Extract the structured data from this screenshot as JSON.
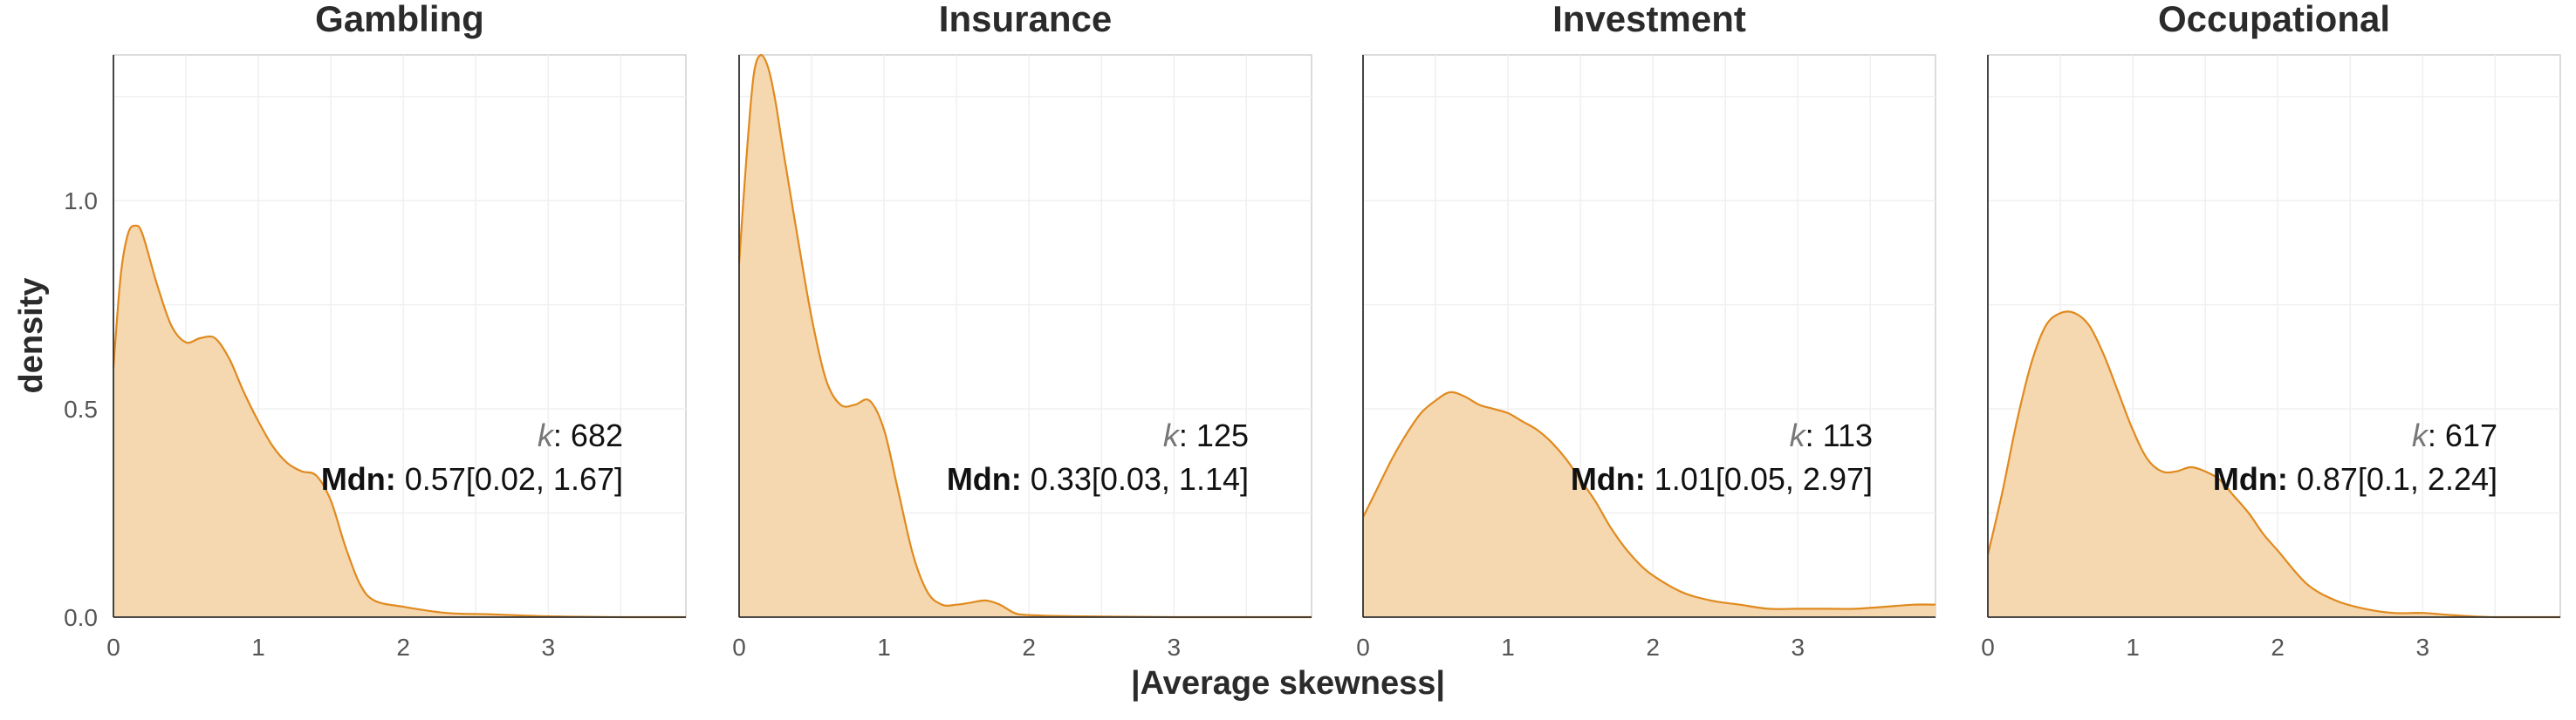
{
  "chart_data": {
    "type": "area",
    "fill_color": "#f5d7b0",
    "line_color": "#e08a1e",
    "xlabel": "|Average skewness|",
    "ylabel": "density",
    "xlim": [
      0,
      3.95
    ],
    "ylim": [
      0,
      1.35
    ],
    "xticks": [
      "0",
      "1",
      "2",
      "3"
    ],
    "yticks": [
      "0.0",
      "0.5",
      "1.0"
    ],
    "panels": [
      {
        "title": "Gambling",
        "k_label": "k",
        "k_value": ": 682",
        "mdn_label": "Mdn:",
        "mdn_value": " 0.57[0.02, 1.67]",
        "x": [
          0,
          0.05,
          0.1,
          0.15,
          0.2,
          0.3,
          0.4,
          0.5,
          0.6,
          0.7,
          0.8,
          0.9,
          1.0,
          1.1,
          1.2,
          1.3,
          1.4,
          1.5,
          1.6,
          1.7,
          1.8,
          2.0,
          2.3,
          2.6,
          3.0,
          3.5,
          3.95
        ],
        "y": [
          0.6,
          0.82,
          0.92,
          0.94,
          0.92,
          0.8,
          0.7,
          0.66,
          0.67,
          0.67,
          0.62,
          0.54,
          0.47,
          0.41,
          0.37,
          0.35,
          0.34,
          0.28,
          0.17,
          0.08,
          0.04,
          0.025,
          0.01,
          0.007,
          0.002,
          0,
          0
        ]
      },
      {
        "title": "Insurance",
        "k_label": "k",
        "k_value": ": 125",
        "mdn_label": "Mdn:",
        "mdn_value": " 0.33[0.03, 1.14]",
        "x": [
          0,
          0.05,
          0.1,
          0.15,
          0.2,
          0.25,
          0.3,
          0.4,
          0.5,
          0.6,
          0.7,
          0.8,
          0.9,
          1.0,
          1.1,
          1.2,
          1.3,
          1.4,
          1.5,
          1.6,
          1.7,
          1.8,
          1.9,
          2.0,
          2.3,
          3.0,
          3.95
        ],
        "y": [
          0.85,
          1.1,
          1.3,
          1.35,
          1.32,
          1.24,
          1.13,
          0.92,
          0.72,
          0.57,
          0.51,
          0.51,
          0.52,
          0.45,
          0.3,
          0.15,
          0.06,
          0.03,
          0.03,
          0.035,
          0.04,
          0.03,
          0.01,
          0.005,
          0.002,
          0,
          0
        ]
      },
      {
        "title": "Investment",
        "k_label": "k",
        "k_value": ": 113",
        "mdn_label": "Mdn:",
        "mdn_value": " 1.01[0.05, 2.97]",
        "x": [
          0,
          0.1,
          0.2,
          0.3,
          0.4,
          0.5,
          0.6,
          0.7,
          0.8,
          0.9,
          1.0,
          1.1,
          1.2,
          1.3,
          1.4,
          1.5,
          1.6,
          1.7,
          1.8,
          1.9,
          2.0,
          2.2,
          2.4,
          2.6,
          2.8,
          3.0,
          3.2,
          3.4,
          3.6,
          3.8,
          3.95
        ],
        "y": [
          0.24,
          0.31,
          0.38,
          0.44,
          0.49,
          0.52,
          0.54,
          0.53,
          0.51,
          0.5,
          0.49,
          0.47,
          0.45,
          0.42,
          0.38,
          0.33,
          0.28,
          0.22,
          0.17,
          0.13,
          0.1,
          0.06,
          0.04,
          0.03,
          0.02,
          0.02,
          0.02,
          0.02,
          0.025,
          0.03,
          0.03
        ]
      },
      {
        "title": "Occupational",
        "k_label": "k",
        "k_value": ": 617",
        "mdn_label": "Mdn:",
        "mdn_value": " 0.87[0.1, 2.24]",
        "x": [
          0,
          0.1,
          0.2,
          0.3,
          0.4,
          0.5,
          0.6,
          0.7,
          0.8,
          0.9,
          1.0,
          1.1,
          1.2,
          1.3,
          1.4,
          1.5,
          1.6,
          1.7,
          1.8,
          1.9,
          2.0,
          2.2,
          2.4,
          2.6,
          2.8,
          3.0,
          3.2,
          3.5,
          3.95
        ],
        "y": [
          0.15,
          0.3,
          0.47,
          0.61,
          0.7,
          0.73,
          0.73,
          0.7,
          0.63,
          0.54,
          0.45,
          0.38,
          0.35,
          0.35,
          0.36,
          0.35,
          0.33,
          0.29,
          0.25,
          0.2,
          0.16,
          0.08,
          0.04,
          0.02,
          0.01,
          0.01,
          0.005,
          0,
          0
        ]
      }
    ]
  }
}
